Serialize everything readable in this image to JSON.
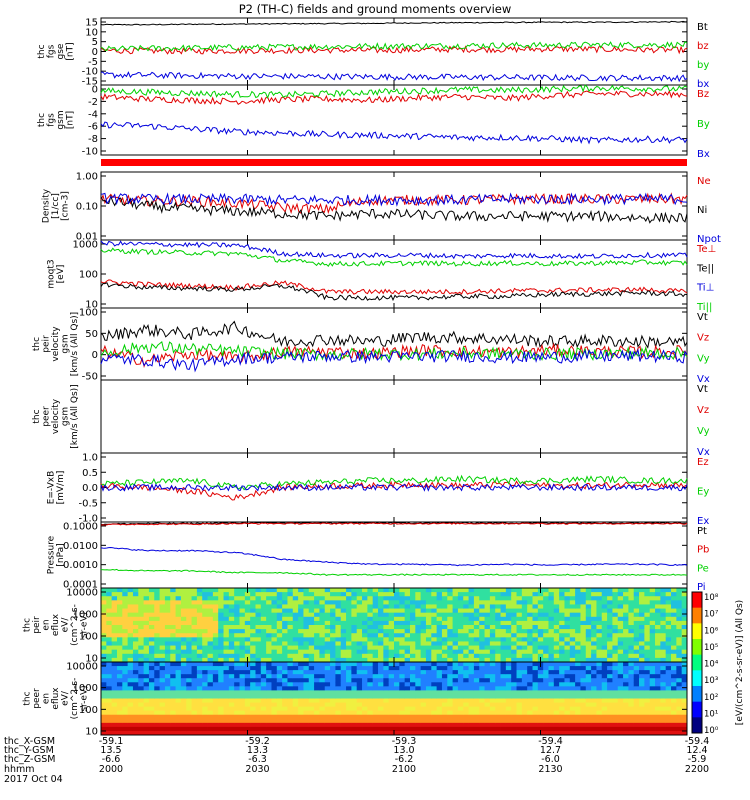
{
  "title": "P2 (TH-C) fields and ground moments overview",
  "colors": {
    "black": "#000000",
    "red": "#e00000",
    "green": "#00d000",
    "blue": "#0000dd"
  },
  "chart_data": [
    {
      "type": "line",
      "ylabel": [
        "thc",
        "fgs",
        "gse",
        "[nT]"
      ],
      "ylim": [
        -15,
        15
      ],
      "yticks": [
        "15",
        "10",
        "5",
        "0",
        "-5",
        "-10",
        "-15"
      ],
      "series": [
        {
          "name": "Bt",
          "color": "black",
          "values": [
            12,
            12,
            12.2,
            12.3,
            12.4,
            12.5,
            12.6,
            12.8,
            12.9,
            13,
            13.1,
            13.1,
            13.2,
            13.3
          ]
        },
        {
          "name": "bz",
          "color": "red",
          "values": [
            0.5,
            0.3,
            0.2,
            0.4,
            0.5,
            0.6,
            0.5,
            0.8,
            1.0,
            0.9,
            1.2,
            1.0,
            0.8,
            0.7
          ]
        },
        {
          "name": "by",
          "color": "green",
          "values": [
            1,
            1.4,
            1.6,
            1.8,
            2,
            2.2,
            2.4,
            2.5,
            2.6,
            2.8,
            2.8,
            3,
            3,
            3
          ]
        },
        {
          "name": "bx",
          "color": "blue",
          "values": [
            -10.5,
            -10.6,
            -10.8,
            -11,
            -11.1,
            -11.2,
            -11.3,
            -11.4,
            -11.5,
            -11.6,
            -11.7,
            -11.8,
            -11.8,
            -11.9
          ]
        }
      ]
    },
    {
      "type": "line",
      "ylabel": [
        "thc",
        "fgs",
        "gsm",
        "[nT]"
      ],
      "ylim": [
        -11,
        1
      ],
      "yticks": [
        "0",
        "-2",
        "-4",
        "-6",
        "-8",
        "-10"
      ],
      "series": [
        {
          "name": "Bz",
          "color": "red",
          "values": [
            -1,
            -1.4,
            -1.6,
            -1.8,
            -1.5,
            -1.4,
            -1.6,
            -1.2,
            -1.0,
            -1.3,
            -0.8,
            -0.5,
            -0.5,
            -0.6
          ]
        },
        {
          "name": "By",
          "color": "green",
          "values": [
            0,
            -0.2,
            -0.4,
            -0.6,
            -0.7,
            -0.5,
            -0.2,
            0,
            0.2,
            0.1,
            0.3,
            0.5,
            0.4,
            0.3
          ]
        },
        {
          "name": "Bx",
          "color": "blue",
          "values": [
            -5.8,
            -6,
            -6.5,
            -7,
            -7.2,
            -7.5,
            -7.6,
            -7.8,
            -8,
            -8,
            -8.2,
            -8.5,
            -8.3,
            -8.4
          ]
        }
      ]
    },
    {
      "type": "line",
      "ylabel": [
        "Density",
        "[1/cc]",
        "[cm-3]"
      ],
      "ylog": true,
      "ylim": [
        0.01,
        1
      ],
      "yticks": [
        "1.00",
        "0.10",
        "0.01"
      ],
      "series": [
        {
          "name": "Ne",
          "color": "red",
          "values": [
            0.16,
            0.14,
            0.14,
            0.12,
            0.09,
            0.08,
            0.15,
            0.15,
            0.15,
            0.16,
            0.16,
            0.16,
            0.16,
            0.16
          ]
        },
        {
          "name": "Ni",
          "color": "black",
          "values": [
            0.15,
            0.1,
            0.08,
            0.07,
            0.06,
            0.05,
            0.06,
            0.055,
            0.05,
            0.05,
            0.05,
            0.05,
            0.045,
            0.045
          ]
        },
        {
          "name": "Npot",
          "color": "blue",
          "values": [
            0.17,
            0.16,
            0.16,
            0.16,
            0.15,
            0.15,
            0.15,
            0.15,
            0.15,
            0.16,
            0.16,
            0.16,
            0.16,
            0.16
          ]
        }
      ]
    },
    {
      "type": "line",
      "ylabel": [
        "moqt3",
        "[eV]"
      ],
      "ylog": true,
      "ylim": [
        10,
        1000
      ],
      "yticks": [
        "1000",
        "100",
        "10"
      ],
      "series": [
        {
          "name": "Te⊥",
          "color": "red",
          "values": [
            60,
            50,
            45,
            40,
            55,
            30,
            30,
            30,
            30,
            32,
            33,
            34,
            35,
            30
          ]
        },
        {
          "name": "Te||",
          "color": "black",
          "values": [
            50,
            40,
            38,
            35,
            45,
            20,
            20,
            20,
            22,
            22,
            25,
            26,
            28,
            25
          ]
        },
        {
          "name": "Ti⊥",
          "color": "blue",
          "values": [
            800,
            750,
            720,
            700,
            400,
            350,
            350,
            360,
            330,
            350,
            340,
            330,
            360,
            350
          ]
        },
        {
          "name": "Ti||",
          "color": "green",
          "values": [
            500,
            450,
            420,
            400,
            250,
            200,
            200,
            210,
            200,
            210,
            200,
            210,
            220,
            210
          ]
        }
      ]
    },
    {
      "type": "line",
      "ylabel": [
        "thc",
        "peir",
        "velocity",
        "gsm",
        "[km/s (All Qs)]"
      ],
      "ylim": [
        -50,
        100
      ],
      "yticks": [
        "100",
        "50",
        "0",
        "-50"
      ],
      "series": [
        {
          "name": "Vt",
          "color": "black",
          "values": [
            40,
            55,
            45,
            60,
            30,
            35,
            30,
            40,
            38,
            35,
            30,
            32,
            30,
            28
          ]
        },
        {
          "name": "Vz",
          "color": "red",
          "values": [
            10,
            -10,
            5,
            -5,
            8,
            10,
            5,
            12,
            10,
            8,
            12,
            10,
            8,
            10
          ]
        },
        {
          "name": "Vy",
          "color": "green",
          "values": [
            5,
            20,
            15,
            10,
            5,
            3,
            5,
            4,
            6,
            5,
            4,
            5,
            6,
            5
          ]
        },
        {
          "name": "Vx",
          "color": "blue",
          "values": [
            -5,
            -8,
            -20,
            -5,
            -3,
            0,
            -2,
            -1,
            0,
            -3,
            -2,
            -1,
            0,
            -2
          ]
        }
      ]
    },
    {
      "type": "line",
      "ylabel": [
        "thc",
        "peer",
        "velocity",
        "gsm",
        "[km/s (All Qs)]"
      ],
      "ylim": [
        0,
        1
      ],
      "yticks": [],
      "series": [
        {
          "name": "Vt",
          "color": "black",
          "values": []
        },
        {
          "name": "Vz",
          "color": "red",
          "values": []
        },
        {
          "name": "Vy",
          "color": "green",
          "values": []
        },
        {
          "name": "Vx",
          "color": "blue",
          "values": []
        }
      ]
    },
    {
      "type": "line",
      "ylabel": [
        "E=-VxB",
        "[mV/m]"
      ],
      "ylim": [
        -1,
        1
      ],
      "yticks": [
        "1.0",
        "0.5",
        "0.0",
        "-0.5",
        "-1.0"
      ],
      "series": [
        {
          "name": "Ez",
          "color": "red",
          "values": [
            0.05,
            0,
            -0.1,
            -0.3,
            0,
            0.05,
            0.05,
            0.1,
            0.05,
            0.1,
            0.05,
            0.05,
            0.1,
            0.05
          ]
        },
        {
          "name": "Ey",
          "color": "green",
          "values": [
            0.1,
            0.15,
            0.2,
            0,
            0.1,
            0.15,
            0.2,
            0.2,
            0.25,
            0.2,
            0.2,
            0.25,
            0.2,
            0.2
          ]
        },
        {
          "name": "Ex",
          "color": "blue",
          "values": [
            0,
            0,
            0,
            0,
            0,
            0,
            0,
            0,
            0,
            0,
            0,
            0,
            0,
            0
          ]
        }
      ]
    },
    {
      "type": "line",
      "ylabel": [
        "Pressure",
        "[nPa]"
      ],
      "ylog": true,
      "ylim": [
        0.0001,
        0.1
      ],
      "yticks": [
        "0.1000",
        "0.0100",
        "0.0010",
        "0.0001"
      ],
      "series": [
        {
          "name": "Pt",
          "color": "black",
          "values": [
            0.08,
            0.085,
            0.085,
            0.09,
            0.09,
            0.09,
            0.09,
            0.09,
            0.09,
            0.09,
            0.09,
            0.09,
            0.09,
            0.09
          ]
        },
        {
          "name": "Pb",
          "color": "red",
          "values": [
            0.075,
            0.08,
            0.08,
            0.085,
            0.085,
            0.085,
            0.085,
            0.085,
            0.085,
            0.085,
            0.085,
            0.085,
            0.085,
            0.085
          ]
        },
        {
          "name": "Pe",
          "color": "green",
          "values": [
            0.0007,
            0.0006,
            0.0006,
            0.0005,
            0.0005,
            0.0004,
            0.0004,
            0.0004,
            0.0004,
            0.0004,
            0.0004,
            0.0004,
            0.0004,
            0.0004
          ]
        },
        {
          "name": "Pi",
          "color": "blue",
          "values": [
            0.007,
            0.005,
            0.005,
            0.004,
            0.002,
            0.0015,
            0.0012,
            0.0012,
            0.0011,
            0.0012,
            0.0011,
            0.0012,
            0.0012,
            0.0011
          ]
        }
      ]
    },
    {
      "type": "heatmap",
      "ylabel": [
        "thc",
        "peir",
        "en",
        "eflux",
        "eV/",
        "(cm^2-s-",
        "sr-eV)"
      ],
      "yticks": [
        "10000",
        "1000",
        "100",
        "10"
      ]
    },
    {
      "type": "heatmap",
      "ylabel": [
        "thc",
        "peer",
        "en",
        "eflux",
        "eV/",
        "(cm^2-s-",
        "sr-eV)"
      ],
      "yticks": [
        "10000",
        "1000",
        "100",
        "10"
      ]
    }
  ],
  "colorbar": {
    "label": "[eV/(cm^2-s-sr-eV)] (All Qs)",
    "ticks": [
      "10⁸",
      "10⁷",
      "10⁶",
      "10⁵",
      "10⁴",
      "10³",
      "10²",
      "10¹",
      "10⁰"
    ]
  },
  "xaxis": {
    "row_labels": [
      "thc_X-GSM",
      "thc_Y-GSM",
      "thc_Z-GSM",
      "hhmm",
      "2017 Oct 04"
    ],
    "columns": [
      {
        "vals": [
          "-59.1",
          "13.5",
          "-6.6",
          "2000"
        ]
      },
      {
        "vals": [
          "-59.2",
          "13.3",
          "-6.3",
          "2030"
        ]
      },
      {
        "vals": [
          "-59.3",
          "13.0",
          "-6.2",
          "2100"
        ]
      },
      {
        "vals": [
          "-59.4",
          "12.7",
          "-6.0",
          "2130"
        ]
      },
      {
        "vals": [
          "-59.4",
          "12.4",
          "-5.9",
          "2200"
        ]
      }
    ]
  }
}
